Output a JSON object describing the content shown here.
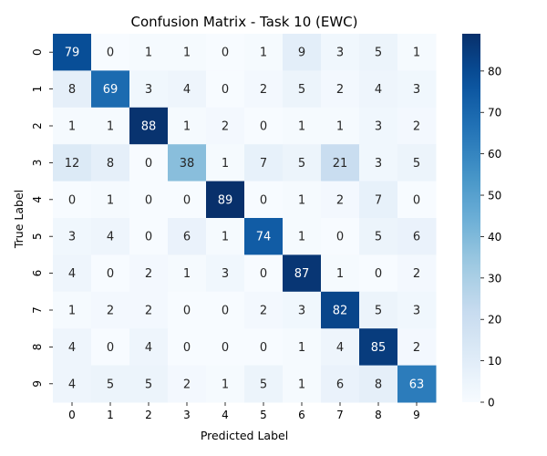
{
  "chart_data": {
    "type": "heatmap",
    "title": "Confusion Matrix - Task 10 (EWC)",
    "xlabel": "Predicted Label",
    "ylabel": "True Label",
    "x_categories": [
      "0",
      "1",
      "2",
      "3",
      "4",
      "5",
      "6",
      "7",
      "8",
      "9"
    ],
    "y_categories": [
      "0",
      "1",
      "2",
      "3",
      "4",
      "5",
      "6",
      "7",
      "8",
      "9"
    ],
    "values": [
      [
        79,
        0,
        1,
        1,
        0,
        1,
        9,
        3,
        5,
        1
      ],
      [
        8,
        69,
        3,
        4,
        0,
        2,
        5,
        2,
        4,
        3
      ],
      [
        1,
        1,
        88,
        1,
        2,
        0,
        1,
        1,
        3,
        2
      ],
      [
        12,
        8,
        0,
        38,
        1,
        7,
        5,
        21,
        3,
        5
      ],
      [
        0,
        1,
        0,
        0,
        89,
        0,
        1,
        2,
        7,
        0
      ],
      [
        3,
        4,
        0,
        6,
        1,
        74,
        1,
        0,
        5,
        6
      ],
      [
        4,
        0,
        2,
        1,
        3,
        0,
        87,
        1,
        0,
        2
      ],
      [
        1,
        2,
        2,
        0,
        0,
        2,
        3,
        82,
        5,
        3
      ],
      [
        4,
        0,
        4,
        0,
        0,
        0,
        1,
        4,
        85,
        2
      ],
      [
        4,
        5,
        5,
        2,
        1,
        5,
        1,
        6,
        8,
        63
      ]
    ],
    "colormap": "Blues",
    "value_range": [
      0,
      89
    ],
    "colorbar_ticks": [
      0,
      10,
      20,
      30,
      40,
      50,
      60,
      70,
      80
    ],
    "annotated": true,
    "grid": false
  }
}
